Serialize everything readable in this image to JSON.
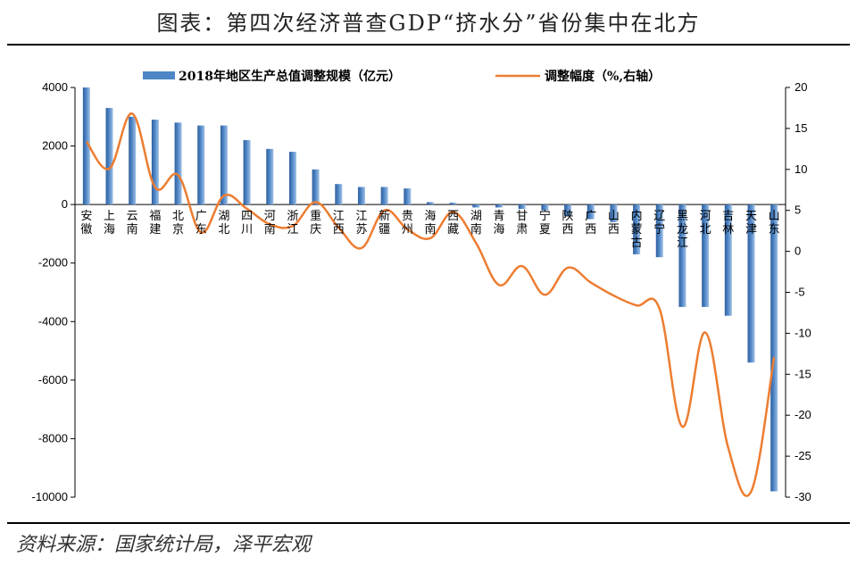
{
  "header": {
    "title": "图表：第四次经济普查GDP“挤水分”省份集中在北方"
  },
  "footer": {
    "source": "资料来源：国家统计局，泽平宏观"
  },
  "colors": {
    "bar": "#4f86c6",
    "line": "#ed7d31"
  },
  "chart_data": {
    "type": "bar",
    "categories": [
      "安徽",
      "上海",
      "云南",
      "福建",
      "北京",
      "广东",
      "湖北",
      "四川",
      "河南",
      "浙江",
      "重庆",
      "江西",
      "江苏",
      "新疆",
      "贵州",
      "海南",
      "西藏",
      "湖南",
      "青海",
      "甘肃",
      "宁夏",
      "陕西",
      "广西",
      "山西",
      "内蒙古",
      "辽宁",
      "黑龙江",
      "河北",
      "吉林",
      "天津",
      "山东"
    ],
    "series": [
      {
        "name": "2018年地区生产总值调整规模（亿元）",
        "type": "bar",
        "axis": "left",
        "values": [
          4000,
          3300,
          3000,
          2900,
          2800,
          2700,
          2700,
          2200,
          1900,
          1800,
          1200,
          700,
          600,
          600,
          550,
          80,
          60,
          -100,
          -100,
          -150,
          -200,
          -400,
          -500,
          -600,
          -1700,
          -1800,
          -3500,
          -3500,
          -3800,
          -5400,
          -9800
        ]
      },
      {
        "name": "调整幅度（%,右轴）",
        "type": "line",
        "axis": "right",
        "values": [
          13.4,
          10.1,
          16.8,
          7.8,
          9.3,
          2.3,
          6.8,
          5.2,
          3.3,
          3.1,
          6.0,
          2.9,
          0.4,
          5.0,
          2.7,
          1.6,
          4.8,
          1.0,
          -4.1,
          -1.8,
          -5.3,
          -2.0,
          -3.8,
          -5.4,
          -6.6,
          -7.0,
          -21.4,
          -9.9,
          -24.0,
          -29.3,
          -12.9
        ]
      }
    ],
    "y_left": {
      "min": -10000,
      "max": 4000,
      "ticks": [
        4000,
        2000,
        0,
        -2000,
        -4000,
        -6000,
        -8000,
        -10000
      ]
    },
    "y_right": {
      "min": -30,
      "max": 20,
      "ticks": [
        20,
        15,
        10,
        5,
        0,
        -5,
        -10,
        -15,
        -20,
        -25,
        -30
      ]
    },
    "legend": "top"
  }
}
